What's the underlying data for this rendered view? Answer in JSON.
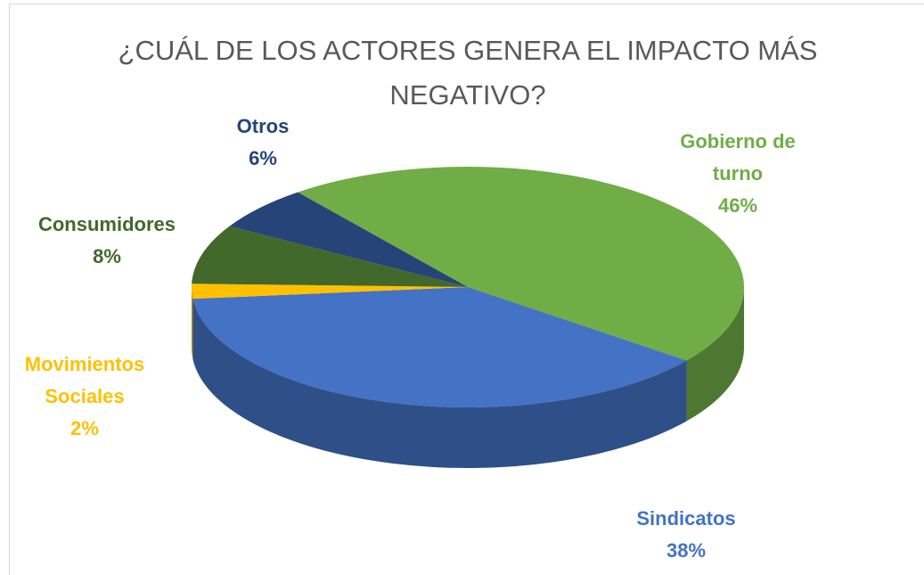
{
  "chart_data": {
    "type": "pie",
    "title": "¿CUÁL DE LOS ACTORES GENERA EL IMPACTO MÁS NEGATIVO?",
    "categories": [
      "Gobierno de turno",
      "Sindicatos",
      "Movimientos Sociales",
      "Consumidores",
      "Otros"
    ],
    "values": [
      46,
      38,
      2,
      8,
      6
    ],
    "value_labels": [
      "46%",
      "38%",
      "2%",
      "8%",
      "6%"
    ],
    "colors": [
      "#70ad47",
      "#4472c4",
      "#ffc000",
      "#43682b",
      "#264478"
    ]
  }
}
